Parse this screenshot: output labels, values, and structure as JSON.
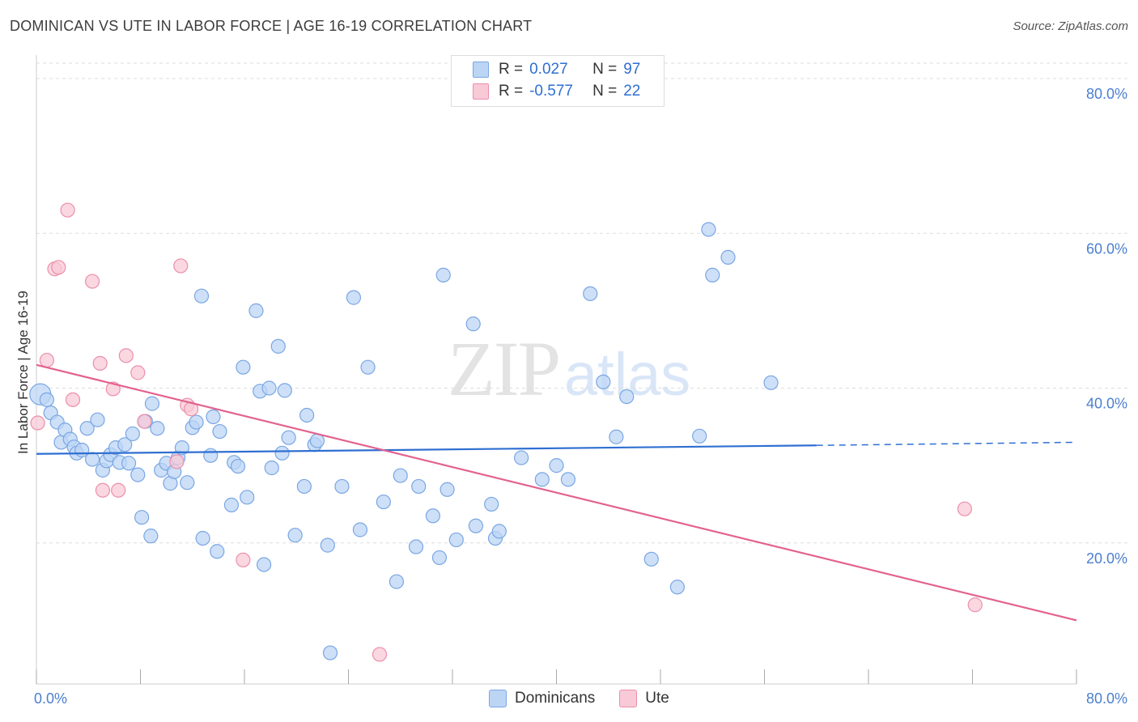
{
  "header": {
    "title": "DOMINICAN VS UTE IN LABOR FORCE | AGE 16-19 CORRELATION CHART",
    "source": "Source: ZipAtlas.com"
  },
  "watermark": {
    "zip": "ZIP",
    "atlas": "atlas"
  },
  "legend": {
    "row1": {
      "r_label": "R =",
      "r_value": "0.027",
      "n_label": "N =",
      "n_value": "97"
    },
    "row2": {
      "r_label": "R =",
      "r_value": "-0.577",
      "n_label": "N =",
      "n_value": "22"
    }
  },
  "bottom_legend": {
    "series1": "Dominicans",
    "series2": "Ute"
  },
  "colors": {
    "dominicans_fill": "#bcd5f5",
    "dominicans_stroke": "#7aa6e3",
    "dominicans_line": "#2f6fd1",
    "ute_fill": "#f8c9d7",
    "ute_stroke": "#ec8fab",
    "ute_line": "#e3628f",
    "tick_label": "#4a7fd1",
    "grid": "#dddddd"
  },
  "chart_data": {
    "type": "scatter",
    "title": "DOMINICAN VS UTE IN LABOR FORCE | AGE 16-19 CORRELATION CHART",
    "xlabel": "",
    "ylabel": "In Labor Force | Age 16-19",
    "xlim": [
      0,
      80
    ],
    "ylim": [
      0,
      80
    ],
    "x_tick_labels": [
      "0.0%",
      "80.0%"
    ],
    "y_ticks": [
      20,
      40,
      60,
      80
    ],
    "y_tick_labels": [
      "20.0%",
      "40.0%",
      "60.0%",
      "80.0%"
    ],
    "grid": true,
    "legend_position": "top-center",
    "series": [
      {
        "name": "Dominicans",
        "r": 0.027,
        "n": 97,
        "trend": {
          "x": [
            0,
            60
          ],
          "y": [
            31.5,
            32.6
          ],
          "dashed_to": [
            80,
            33.0
          ]
        },
        "points": [
          [
            0.3,
            39.2
          ],
          [
            0.8,
            38.5
          ],
          [
            1.1,
            36.8
          ],
          [
            1.6,
            35.6
          ],
          [
            1.9,
            33.0
          ],
          [
            2.2,
            34.6
          ],
          [
            2.6,
            33.4
          ],
          [
            2.9,
            32.4
          ],
          [
            3.1,
            31.6
          ],
          [
            3.5,
            32.0
          ],
          [
            3.9,
            34.8
          ],
          [
            4.3,
            30.8
          ],
          [
            4.7,
            35.9
          ],
          [
            5.1,
            29.4
          ],
          [
            5.4,
            30.6
          ],
          [
            5.7,
            31.4
          ],
          [
            6.1,
            32.3
          ],
          [
            6.4,
            30.4
          ],
          [
            6.8,
            32.7
          ],
          [
            7.1,
            30.3
          ],
          [
            7.4,
            34.1
          ],
          [
            7.8,
            28.8
          ],
          [
            8.1,
            23.3
          ],
          [
            8.4,
            35.7
          ],
          [
            8.8,
            20.9
          ],
          [
            8.9,
            38.0
          ],
          [
            9.3,
            34.8
          ],
          [
            9.6,
            29.4
          ],
          [
            10.0,
            30.3
          ],
          [
            10.3,
            27.7
          ],
          [
            10.6,
            29.2
          ],
          [
            10.9,
            31.0
          ],
          [
            11.2,
            32.3
          ],
          [
            11.6,
            27.8
          ],
          [
            12.0,
            34.9
          ],
          [
            12.3,
            35.6
          ],
          [
            12.7,
            51.9
          ],
          [
            12.8,
            20.6
          ],
          [
            13.4,
            31.3
          ],
          [
            13.6,
            36.3
          ],
          [
            13.9,
            18.9
          ],
          [
            14.1,
            34.4
          ],
          [
            15.0,
            24.9
          ],
          [
            15.2,
            30.4
          ],
          [
            15.5,
            29.9
          ],
          [
            15.9,
            42.7
          ],
          [
            16.2,
            25.9
          ],
          [
            16.9,
            50.0
          ],
          [
            17.2,
            39.6
          ],
          [
            17.5,
            17.2
          ],
          [
            17.9,
            40.0
          ],
          [
            18.1,
            29.7
          ],
          [
            18.6,
            45.4
          ],
          [
            18.9,
            31.6
          ],
          [
            19.1,
            39.7
          ],
          [
            19.4,
            33.6
          ],
          [
            19.9,
            21.0
          ],
          [
            20.6,
            27.3
          ],
          [
            20.8,
            36.5
          ],
          [
            21.4,
            32.7
          ],
          [
            21.6,
            33.2
          ],
          [
            22.4,
            19.7
          ],
          [
            22.6,
            5.8
          ],
          [
            23.5,
            27.3
          ],
          [
            24.4,
            51.7
          ],
          [
            24.9,
            21.7
          ],
          [
            25.5,
            42.7
          ],
          [
            26.7,
            25.3
          ],
          [
            27.7,
            15.0
          ],
          [
            28.0,
            28.7
          ],
          [
            29.2,
            19.5
          ],
          [
            29.4,
            27.3
          ],
          [
            30.5,
            23.5
          ],
          [
            31.0,
            18.1
          ],
          [
            31.3,
            54.6
          ],
          [
            31.6,
            26.9
          ],
          [
            32.3,
            20.4
          ],
          [
            33.6,
            48.3
          ],
          [
            33.8,
            22.2
          ],
          [
            35.0,
            25.0
          ],
          [
            35.3,
            20.6
          ],
          [
            35.6,
            21.5
          ],
          [
            37.3,
            31.0
          ],
          [
            38.9,
            28.2
          ],
          [
            40.0,
            30.0
          ],
          [
            40.9,
            28.2
          ],
          [
            42.6,
            52.2
          ],
          [
            43.6,
            40.8
          ],
          [
            44.6,
            33.7
          ],
          [
            45.4,
            38.9
          ],
          [
            47.3,
            17.9
          ],
          [
            49.3,
            14.3
          ],
          [
            51.0,
            33.8
          ],
          [
            51.7,
            60.5
          ],
          [
            52.0,
            54.6
          ],
          [
            53.2,
            56.9
          ],
          [
            56.5,
            40.7
          ]
        ]
      },
      {
        "name": "Ute",
        "r": -0.577,
        "n": 22,
        "trend": {
          "x": [
            0,
            80
          ],
          "y": [
            43.0,
            10.0
          ]
        },
        "points": [
          [
            0.1,
            35.5
          ],
          [
            0.8,
            43.6
          ],
          [
            1.4,
            55.4
          ],
          [
            1.7,
            55.6
          ],
          [
            2.4,
            63.0
          ],
          [
            2.8,
            38.5
          ],
          [
            4.3,
            53.8
          ],
          [
            4.9,
            43.2
          ],
          [
            5.1,
            26.8
          ],
          [
            5.9,
            39.9
          ],
          [
            6.3,
            26.8
          ],
          [
            6.9,
            44.2
          ],
          [
            7.8,
            42.0
          ],
          [
            8.3,
            35.7
          ],
          [
            10.8,
            30.5
          ],
          [
            11.1,
            55.8
          ],
          [
            11.6,
            37.8
          ],
          [
            11.9,
            37.3
          ],
          [
            15.9,
            17.8
          ],
          [
            26.4,
            5.6
          ],
          [
            71.4,
            24.4
          ],
          [
            72.2,
            12.0
          ]
        ]
      }
    ]
  }
}
